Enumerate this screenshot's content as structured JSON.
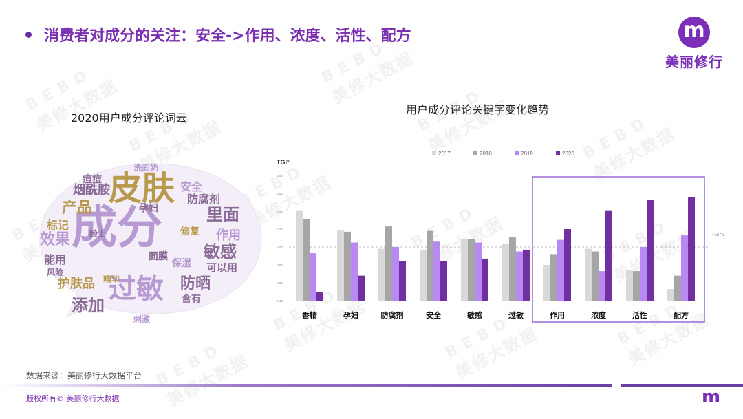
{
  "header": {
    "title": "消费者对成分的关注：安全->作用、浓度、活性、配方"
  },
  "logo": {
    "glyph": "m",
    "name": "美丽修行"
  },
  "watermark": {
    "top": "BEBD",
    "bottom": "美修大数据"
  },
  "word_cloud": {
    "title": "2020用户成分评论词云",
    "words": [
      {
        "text": "成分",
        "color": "#b79ad2"
      },
      {
        "text": "皮肤",
        "color": "#b89a4e"
      },
      {
        "text": "过敏",
        "color": "#b79ad2"
      },
      {
        "text": "产品",
        "color": "#b89a4e"
      },
      {
        "text": "里面",
        "color": "#8a6a96"
      },
      {
        "text": "敏感",
        "color": "#8a6a96"
      },
      {
        "text": "添加",
        "color": "#8a6a96"
      },
      {
        "text": "防晒",
        "color": "#8a6a96"
      },
      {
        "text": "护肤品",
        "color": "#b89a4e"
      },
      {
        "text": "效果",
        "color": "#b79ad2"
      },
      {
        "text": "烟酰胺",
        "color": "#8a6a96"
      },
      {
        "text": "防腐剂",
        "color": "#8a6a96"
      },
      {
        "text": "作用",
        "color": "#b79ad2"
      },
      {
        "text": "标记",
        "color": "#b89a4e"
      },
      {
        "text": "能用",
        "color": "#8a6a96"
      },
      {
        "text": "可以用",
        "color": "#8a6a96"
      },
      {
        "text": "面膜",
        "color": "#8a6a96"
      },
      {
        "text": "孕妇",
        "color": "#8a6a96"
      },
      {
        "text": "安全",
        "color": "#b79ad2"
      },
      {
        "text": "痘痘",
        "color": "#8a6a96"
      },
      {
        "text": "修复",
        "color": "#b89a4e"
      },
      {
        "text": "保湿",
        "color": "#b79ad2"
      },
      {
        "text": "含有",
        "color": "#8a6a96"
      },
      {
        "text": "刺激",
        "color": "#b79ad2"
      },
      {
        "text": "脸上",
        "color": "#8a6a96"
      },
      {
        "text": "风险",
        "color": "#8a6a96"
      },
      {
        "text": "精华",
        "color": "#b89a4e"
      },
      {
        "text": "洗面奶",
        "color": "#b79ad2"
      }
    ]
  },
  "chart_data": {
    "type": "bar",
    "title": "用户成分评论关键字变化趋势",
    "ylabel": "TGI*",
    "ylim": [
      0.4,
      1.8
    ],
    "yticks": [
      "0.40",
      "0.60",
      "0.80",
      "1.00",
      "1.20",
      "1.40",
      "1.60",
      "1.80"
    ],
    "reference_line": {
      "value": 1.0,
      "label": "TGI=1"
    },
    "categories": [
      "香精",
      "孕妇",
      "防腐剂",
      "安全",
      "敏感",
      "过敏",
      "作用",
      "浓度",
      "活性",
      "配方"
    ],
    "highlight_categories": [
      "作用",
      "浓度",
      "活性",
      "配方"
    ],
    "legend_position": "top",
    "series": [
      {
        "name": "2017",
        "color": "#d9d9d9",
        "values": [
          1.41,
          1.19,
          0.98,
          0.97,
          1.09,
          1.04,
          0.8,
          0.98,
          0.74,
          0.53
        ]
      },
      {
        "name": "2018",
        "color": "#a6a6a6",
        "values": [
          1.31,
          1.17,
          1.23,
          1.18,
          1.09,
          1.11,
          0.92,
          0.95,
          0.73,
          0.68
        ]
      },
      {
        "name": "2019",
        "color": "#b889f2",
        "values": [
          0.93,
          1.05,
          1.0,
          1.06,
          1.05,
          0.95,
          1.08,
          0.73,
          1.0,
          1.13
        ]
      },
      {
        "name": "2020",
        "color": "#7030a0",
        "values": [
          0.5,
          0.68,
          0.84,
          0.84,
          0.87,
          0.97,
          1.2,
          1.41,
          1.53,
          1.56
        ]
      }
    ]
  },
  "footer": {
    "source": "数据来源：美丽修行大数据平台",
    "copyright": "版权所有© 美丽修行大数据",
    "mini_logo": "m"
  }
}
